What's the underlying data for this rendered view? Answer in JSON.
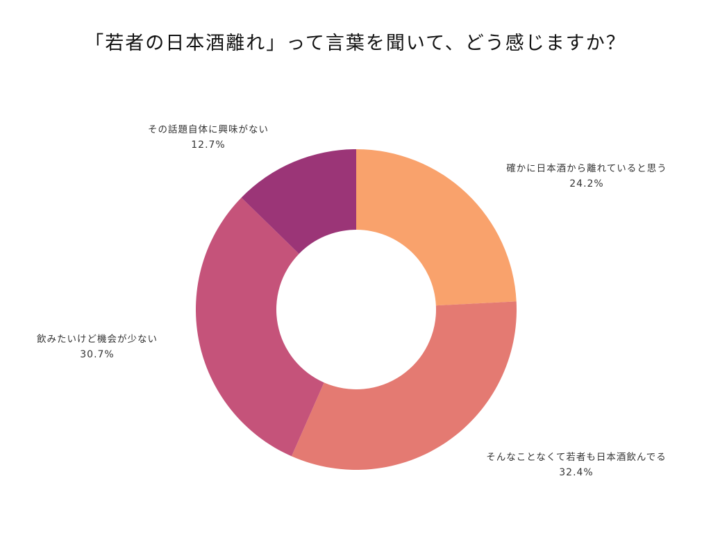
{
  "title": "「若者の日本酒離れ」って言葉を聞いて、どう感じますか？",
  "chart_data": {
    "type": "pie",
    "subtype": "donut",
    "title": "「若者の日本酒離れ」って言葉を聞いて、どう感じますか？",
    "categories": [
      "確かに日本酒から離れていると思う",
      "そんなことなくて若者も日本酒飲んでる",
      "飲みたいけど機会が少ない",
      "その話題自体に興味がない"
    ],
    "values": [
      24.2,
      32.4,
      30.7,
      12.7
    ],
    "value_labels": [
      "24.2%",
      "32.4%",
      "30.7%",
      "12.7%"
    ],
    "colors": [
      "#F9A26C",
      "#E47A72",
      "#C5537A",
      "#9B3577"
    ],
    "start_angle": "12 o'clock",
    "direction": "clockwise",
    "legend": "none (labels placed next to slices)"
  },
  "labels": [
    {
      "text": "確かに日本酒から離れていると思う",
      "pct": "24.2%"
    },
    {
      "text": "そんなことなくて若者も日本酒飲んでる",
      "pct": "32.4%"
    },
    {
      "text": "飲みたいけど機会が少ない",
      "pct": "30.7%"
    },
    {
      "text": "その話題自体に興味がない",
      "pct": "12.7%"
    }
  ]
}
